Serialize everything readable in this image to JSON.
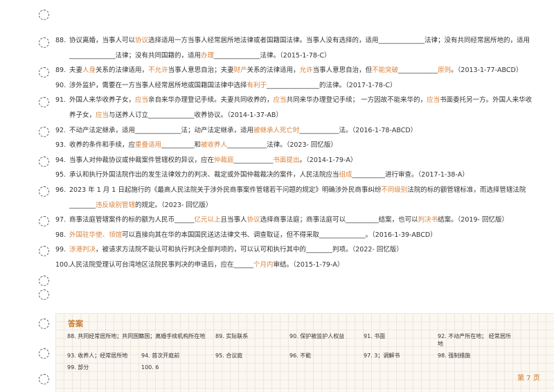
{
  "items": [
    {
      "number": "88.",
      "parts": [
        "协议离婚，当事人可以",
        {
          "text": "协议",
          "color": "#d9823b"
        },
        "选择适用一方当事人经常居所地法律或者国籍国法律。当事人没有选择的，适用______________法律；没有共同经常居所地的，适用______________法律；没有共同国籍的，适用",
        {
          "text": "办理",
          "color": "#d9823b"
        },
        "______________法律。（2015-1-78-C）"
      ]
    },
    {
      "number": "89.",
      "parts": [
        "夫妻",
        {
          "text": "人身",
          "color": "#d9823b"
        },
        "关系的法律适用，",
        {
          "text": "不允许",
          "color": "#d9823b"
        },
        "当事人意思自治；夫妻",
        {
          "text": "财产",
          "color": "#d9823b"
        },
        "关系的法律适用，",
        {
          "text": "允许",
          "color": "#d9823b"
        },
        "当事人意思自治，但",
        {
          "text": "不能突破",
          "color": "#d9823b"
        },
        "____________",
        {
          "text": "原则",
          "color": "#d9823b"
        },
        "。（2013-1-77-ABCD）"
      ]
    },
    {
      "number": "90.",
      "parts": [
        "涉外监护，需要在一方当事人经常居所地或国籍国法律中选择",
        {
          "text": "有利于",
          "color": "#d9823b"
        },
        "________________的法律。（2017-1-78-C）"
      ]
    },
    {
      "number": "91.",
      "parts": [
        "外国人来华收养子女，",
        {
          "text": "应当",
          "color": "#d9823b"
        },
        "亲自来华办理登记手续。夫妻共同收养的，",
        {
          "text": "应当",
          "color": "#d9823b"
        },
        "共同来华办理登记手续； 一方因故不能来华的，",
        {
          "text": "应当",
          "color": "#d9823b"
        },
        "书面委托另一方。外国人来华收养子女，",
        {
          "text": "应当",
          "color": "#d9823b"
        },
        "与送养人订立______________收养协议。（2014-1-37-AB）"
      ]
    },
    {
      "number": "92.",
      "parts": [
        "不动产法定继承，适用______________法；动产法定继承，适用",
        {
          "text": "被继承人死亡时",
          "color": "#d9823b"
        },
        "____________法。（2016-1-78-ABCD）"
      ]
    },
    {
      "number": "93.",
      "parts": [
        "收养的条件和手续，应",
        {
          "text": "重叠适用",
          "color": "#d9823b"
        },
        "__________和",
        {
          "text": "被收养人",
          "color": "#d9823b"
        },
        "____________法律。（2023- 回忆版）"
      ]
    },
    {
      "number": "94.",
      "parts": [
        "当事人对仲裁协议或仲裁案件管辖权的异议，应在",
        {
          "text": "仲裁庭",
          "color": "#d9823b"
        },
        "____________",
        {
          "text": "书面提出",
          "color": "#d9823b"
        },
        "。（2014-1-79-A）"
      ]
    },
    {
      "number": "95.",
      "parts": [
        "承认和执行外国法院作出的发生法律效力的判决、裁定或外国仲裁裁决的案件，人民法院应当",
        {
          "text": "组成",
          "color": "#d9823b"
        },
        "__________进行审查。（2017-1-38-A）"
      ]
    },
    {
      "number": "96.",
      "parts": [
        "2023 年 1 月 1 日起施行的《最高人民法院关于涉外民商事案件管辖若干问题的规定》明确涉外民商事纠纷",
        {
          "text": "不同级别",
          "color": "#d9823b"
        },
        "法院的标的额管辖标准，而选择管辖法院________",
        {
          "text": "违反级别管辖",
          "color": "#d9823b"
        },
        "的规定。（2023- 回忆版）"
      ]
    },
    {
      "number": "97.",
      "parts": [
        "商事法庭管辖案件的标的额为人民币______",
        {
          "text": "亿元以上",
          "color": "#d9823b"
        },
        "且当事人",
        {
          "text": "协议",
          "color": "#d9823b"
        },
        "选择商事法庭；商事法庭可以__________结案，也可以",
        {
          "text": "判决书",
          "color": "#d9823b"
        },
        "结案。（2019- 回忆版）"
      ]
    },
    {
      "number": "98.",
      "parts": [
        {
          "text": "外国驻华使、领馆",
          "color": "#d9823b"
        },
        "可以直接向其在华的本国国民送达法律文书、调查取证，但不得采取______________。（2016-1-39-ABCD）"
      ]
    },
    {
      "number": "99.",
      "parts": [
        {
          "text": "涉港判决",
          "color": "#d9823b"
        },
        "，被请求方法院不能认可和执行判决全部判项的，可以认可和执行其中的________判项。（2022- 回忆版）"
      ]
    },
    {
      "number": "100.",
      "parts": [
        "人民法院受理认可台湾地区法院民事判决的申请后，应在______",
        {
          "text": "个月内",
          "color": "#d9823b"
        },
        "审结。（2015-1-79-A）"
      ]
    }
  ],
  "answers": {
    "title": "答案",
    "entries": [
      "88. 共同经常居所地；共同国籍国；离婚手续机构所在地",
      "89. 实际联系",
      "90. 保护被监护人权益",
      "91. 书面",
      "92. 不动产所在地； 经常居所地",
      "93. 收养人；经常居所地",
      "94. 首次开庭前",
      "95. 合议庭",
      "96. 不能",
      "97. 3；调解书",
      "98. 强制措施",
      "99. 部分",
      "100. 6"
    ]
  },
  "footer": "第 7 页"
}
